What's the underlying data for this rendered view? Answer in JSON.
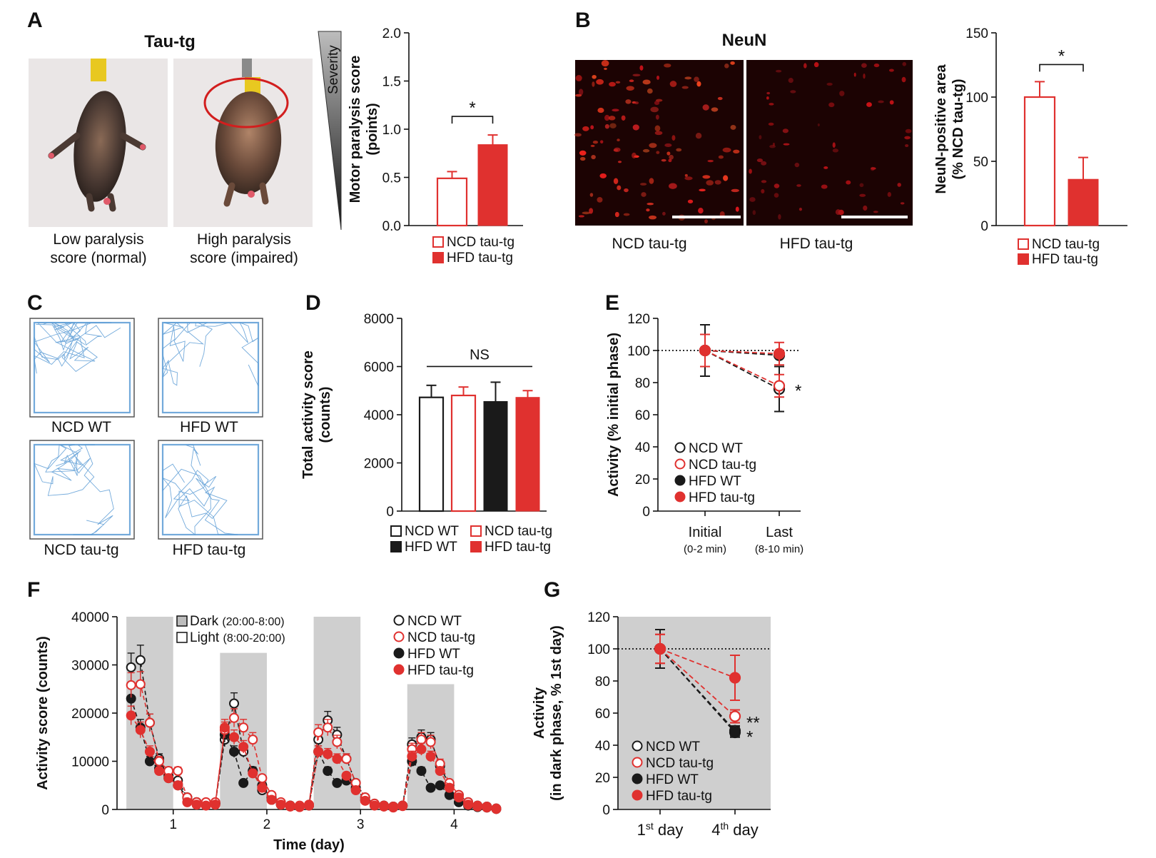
{
  "colors": {
    "red": "#e0312f",
    "black": "#1a1a1a",
    "shade": "#cfcfcf",
    "track": "#5b9bd5"
  },
  "panels": {
    "A": {
      "label": "A",
      "photo_title": "Tau-tg",
      "photo_captions": [
        [
          "Low paralysis",
          "score (normal)"
        ],
        [
          "High paralysis",
          "score (impaired)"
        ]
      ],
      "severity": "Severity"
    },
    "B": {
      "label": "B",
      "image_title": "NeuN",
      "image_captions": [
        "NCD tau-tg",
        "HFD tau-tg"
      ]
    },
    "C": {
      "label": "C",
      "track_captions": [
        "NCD WT",
        "HFD WT",
        "NCD tau-tg",
        "HFD tau-tg"
      ]
    },
    "D": {
      "label": "D"
    },
    "E": {
      "label": "E"
    },
    "F": {
      "label": "F"
    },
    "G": {
      "label": "G"
    }
  },
  "chart_data": [
    {
      "id": "A-bar",
      "type": "bar",
      "ylabel": [
        "Motor paralysis score",
        "(points)"
      ],
      "ylim": [
        0,
        2.0
      ],
      "yticks": [
        "0.0",
        "0.5",
        "1.0",
        "1.5",
        "2.0"
      ],
      "categories": [
        "NCD tau-tg",
        "HFD tau-tg"
      ],
      "values": [
        0.49,
        0.84
      ],
      "errors": [
        0.07,
        0.1
      ],
      "fills": [
        "open-red",
        "red"
      ],
      "significance": "*",
      "legend": [
        "NCD tau-tg",
        "HFD tau-tg"
      ]
    },
    {
      "id": "B-bar",
      "type": "bar",
      "ylabel": [
        "NeuN-positive area",
        "(% NCD tau-tg)"
      ],
      "ylim": [
        0,
        150
      ],
      "yticks": [
        "0",
        "50",
        "100",
        "150"
      ],
      "categories": [
        "NCD tau-tg",
        "HFD tau-tg"
      ],
      "values": [
        100,
        36
      ],
      "errors": [
        12,
        17
      ],
      "fills": [
        "open-red",
        "red"
      ],
      "significance": "*",
      "legend": [
        "NCD tau-tg",
        "HFD tau-tg"
      ]
    },
    {
      "id": "D-bar",
      "type": "bar",
      "ylabel": [
        "Total activity score",
        "(counts)"
      ],
      "ylim": [
        0,
        8000
      ],
      "yticks": [
        "0",
        "2000",
        "4000",
        "6000",
        "8000"
      ],
      "categories": [
        "NCD WT",
        "NCD tau-tg",
        "HFD WT",
        "HFD tau-tg"
      ],
      "values": [
        4720,
        4800,
        4550,
        4720
      ],
      "errors": [
        500,
        350,
        800,
        280
      ],
      "fills": [
        "open-black",
        "open-red",
        "black",
        "red"
      ],
      "significance": "NS",
      "legend": [
        "NCD WT",
        "NCD tau-tg",
        "HFD WT",
        "HFD tau-tg"
      ]
    },
    {
      "id": "E-line",
      "type": "line",
      "ylabel": [
        "Activity (% initial phase)"
      ],
      "ylim": [
        0,
        120
      ],
      "yticks": [
        "0",
        "20",
        "40",
        "60",
        "80",
        "100",
        "120"
      ],
      "categories": [
        "Initial",
        "Last"
      ],
      "sublabels": [
        "(0-2 min)",
        "(8-10 min)"
      ],
      "reference": 100,
      "series": [
        {
          "name": "NCD WT",
          "style": "open-black",
          "values": [
            100,
            76
          ],
          "errors": [
            16,
            14
          ]
        },
        {
          "name": "NCD tau-tg",
          "style": "open-red",
          "values": [
            100,
            78
          ],
          "errors": [
            10,
            7
          ]
        },
        {
          "name": "HFD WT",
          "style": "black",
          "values": [
            100,
            97
          ],
          "errors": [
            0,
            0
          ]
        },
        {
          "name": "HFD tau-tg",
          "style": "red",
          "values": [
            100,
            98
          ],
          "errors": [
            10,
            7
          ]
        }
      ],
      "annotation": "*"
    },
    {
      "id": "F-line",
      "type": "line",
      "xlabel": "Time (day)",
      "ylabel": [
        "Activity score (counts)"
      ],
      "ylim": [
        0,
        40000
      ],
      "yticks": [
        "0",
        "10000",
        "20000",
        "30000",
        "40000"
      ],
      "xticks": [
        "1",
        "2",
        "3",
        "4"
      ],
      "xrange": [
        0.45,
        4.55
      ],
      "dark_periods": [
        [
          0.55,
          1.05,
          40000
        ],
        [
          1.55,
          2.05,
          32500
        ],
        [
          2.55,
          3.05,
          40000
        ],
        [
          3.55,
          4.05,
          26000
        ]
      ],
      "shade_legend": [
        [
          "Dark",
          "(20:00-8:00)"
        ],
        [
          "Light",
          "(8:00-20:00)"
        ]
      ],
      "x": [
        0.6,
        0.7,
        0.8,
        0.9,
        1.0,
        1.1,
        1.2,
        1.3,
        1.4,
        1.5,
        1.6,
        1.7,
        1.8,
        1.9,
        2.0,
        2.1,
        2.2,
        2.3,
        2.4,
        2.5,
        2.6,
        2.7,
        2.8,
        2.9,
        3.0,
        3.1,
        3.2,
        3.3,
        3.4,
        3.5,
        3.6,
        3.7,
        3.8,
        3.9,
        4.0,
        4.1,
        4.2,
        4.3,
        4.4,
        4.5
      ],
      "series": [
        {
          "name": "NCD WT",
          "style": "open-black",
          "values": [
            29500,
            31000,
            18000,
            10500,
            6500,
            6000,
            2500,
            1500,
            1200,
            1300,
            14500,
            22000,
            12000,
            8000,
            4000,
            2500,
            1200,
            800,
            600,
            900,
            14500,
            18500,
            15500,
            10500,
            5500,
            2500,
            1200,
            800,
            600,
            800,
            13500,
            15000,
            14500,
            9000,
            5000,
            3000,
            1500,
            800,
            600,
            200
          ]
        },
        {
          "name": "NCD tau-tg",
          "style": "open-red",
          "values": [
            25800,
            26000,
            18000,
            10000,
            8000,
            8000,
            2500,
            1500,
            1500,
            1500,
            16500,
            19000,
            17000,
            14500,
            6500,
            3000,
            1500,
            800,
            800,
            1000,
            16000,
            17000,
            14000,
            10500,
            5500,
            2500,
            1200,
            800,
            600,
            800,
            12500,
            14500,
            14000,
            9500,
            5500,
            3000,
            1500,
            800,
            600,
            200
          ]
        },
        {
          "name": "HFD WT",
          "style": "black",
          "values": [
            23000,
            17000,
            10000,
            8500,
            7000,
            5000,
            2500,
            1500,
            1000,
            1200,
            15500,
            12000,
            5500,
            8000,
            5000,
            2000,
            1000,
            800,
            600,
            800,
            12000,
            8000,
            5500,
            6000,
            4500,
            2000,
            1000,
            800,
            600,
            800,
            10000,
            8000,
            4500,
            5000,
            3000,
            1500,
            800,
            500,
            400,
            100
          ]
        },
        {
          "name": "HFD tau-tg",
          "style": "red",
          "values": [
            19500,
            16500,
            12000,
            8000,
            6500,
            5000,
            1500,
            1000,
            800,
            1000,
            17000,
            15000,
            13000,
            7500,
            4500,
            2000,
            1000,
            600,
            500,
            800,
            12000,
            11500,
            10500,
            7000,
            4000,
            1800,
            800,
            600,
            400,
            700,
            11000,
            12500,
            11000,
            8000,
            4500,
            2500,
            1000,
            600,
            400,
            100
          ]
        }
      ],
      "legend": [
        "NCD WT",
        "NCD tau-tg",
        "HFD WT",
        "HFD tau-tg"
      ]
    },
    {
      "id": "G-line",
      "type": "line",
      "ylabel": [
        "Activity",
        "(in dark phase, % 1st day)"
      ],
      "ylim": [
        0,
        120
      ],
      "yticks": [
        "0",
        "20",
        "40",
        "60",
        "80",
        "100",
        "120"
      ],
      "categories": [
        "1st day",
        "4th day"
      ],
      "reference": 100,
      "series": [
        {
          "name": "NCD WT",
          "style": "open-black",
          "values": [
            100,
            49
          ],
          "errors": [
            12,
            3
          ]
        },
        {
          "name": "NCD tau-tg",
          "style": "open-red",
          "values": [
            100,
            58
          ],
          "errors": [
            9,
            4
          ]
        },
        {
          "name": "HFD WT",
          "style": "black",
          "values": [
            100,
            48
          ],
          "errors": [
            12,
            3
          ]
        },
        {
          "name": "HFD tau-tg",
          "style": "red",
          "values": [
            100,
            82
          ],
          "errors": [
            9,
            14
          ]
        }
      ],
      "annotations": [
        "**",
        "*"
      ]
    }
  ]
}
